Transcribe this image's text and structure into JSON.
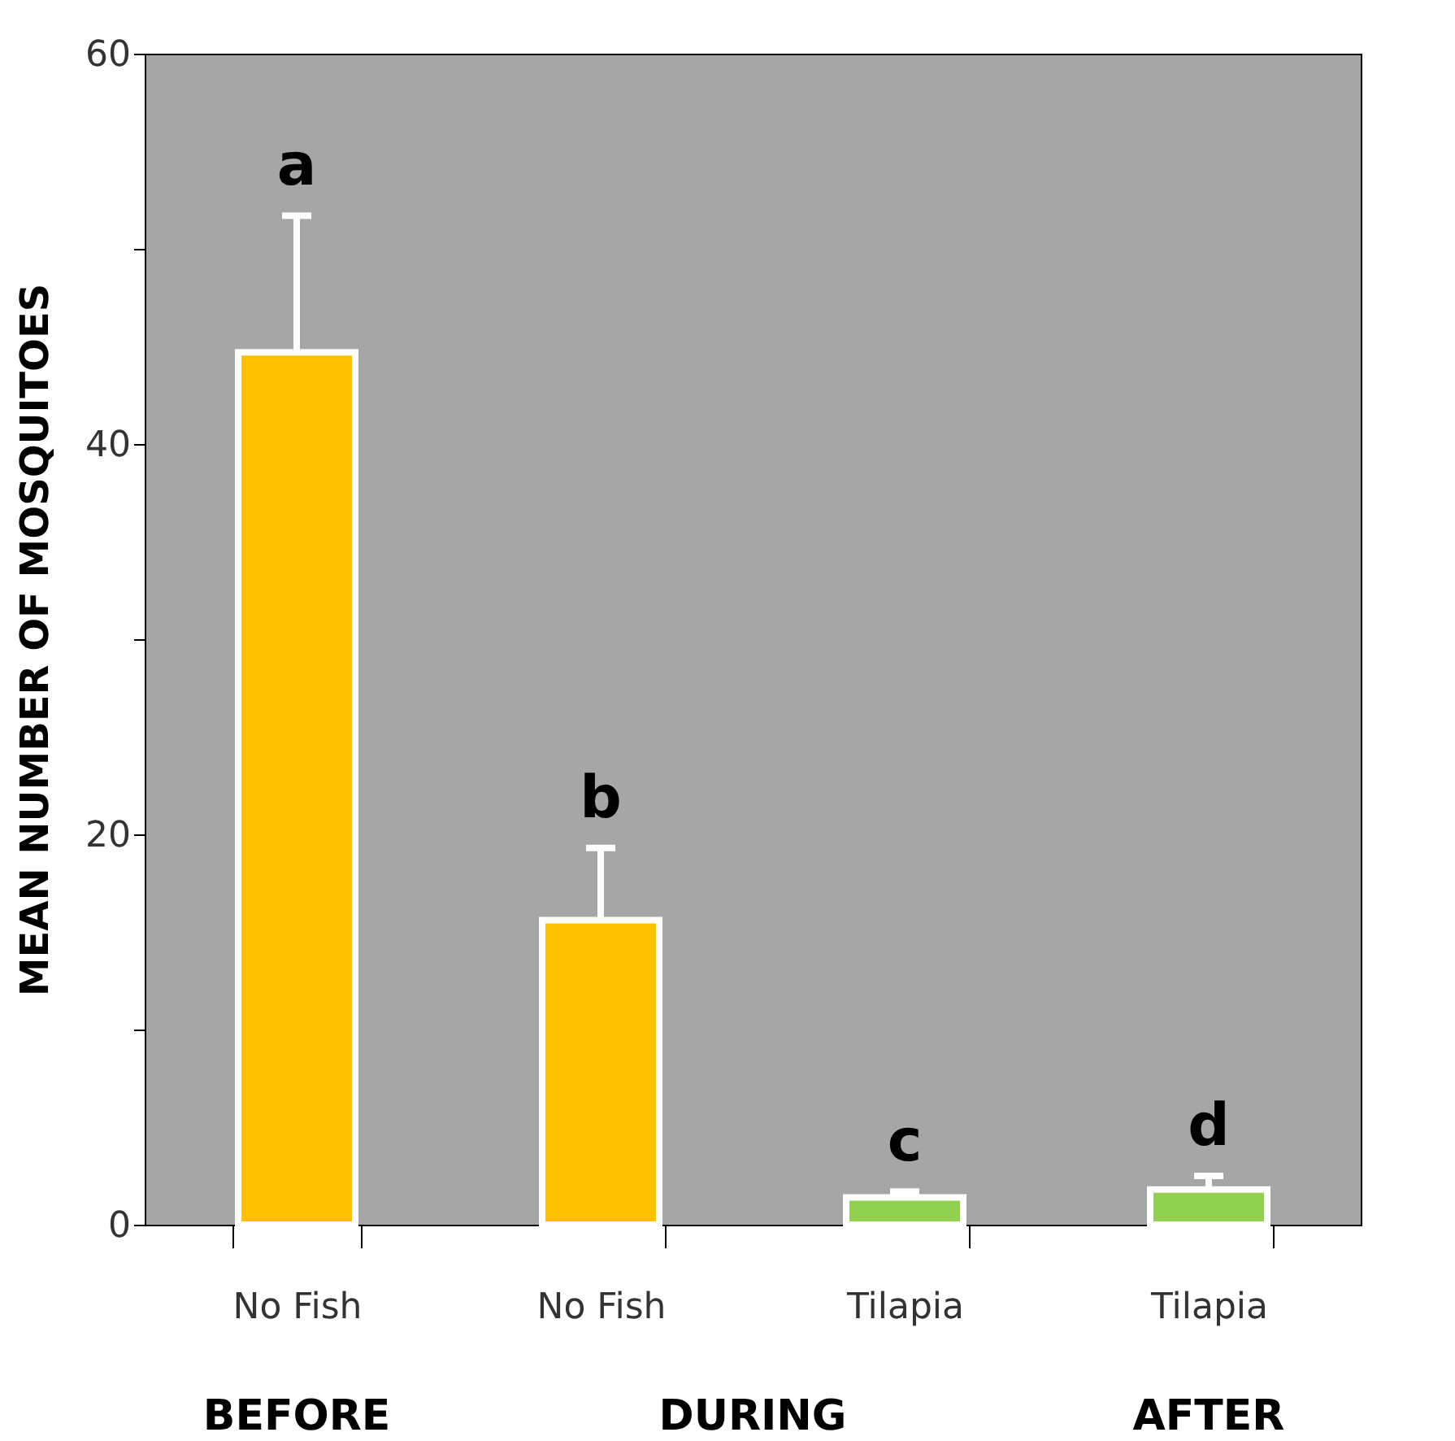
{
  "chart_data": {
    "type": "bar",
    "ylabel": "MEAN NUMBER OF MOSQUITOES",
    "categories": [
      "No Fish",
      "No Fish",
      "Tilapia",
      "Tilapia"
    ],
    "values": [
      44.7,
      15.6,
      1.4,
      1.8
    ],
    "colors": [
      "#ffc000",
      "#ffc000",
      "#92d050",
      "#92d050"
    ],
    "errors": [
      [
        44.7,
        51.7
      ],
      [
        15.6,
        19.3
      ],
      [
        1.4,
        1.7
      ],
      [
        1.8,
        2.5
      ]
    ],
    "value_labels": [
      "a",
      "b",
      "c",
      "d"
    ],
    "annotations": [
      "BEFORE",
      "DURING",
      "AFTER"
    ],
    "ylim": [
      0,
      60
    ],
    "yticks": [
      0,
      {
        "value": 10,
        "label": null
      },
      20,
      {
        "value": 30,
        "label": null
      },
      40,
      {
        "value": 50,
        "label": null
      },
      60
    ],
    "grid": false
  }
}
